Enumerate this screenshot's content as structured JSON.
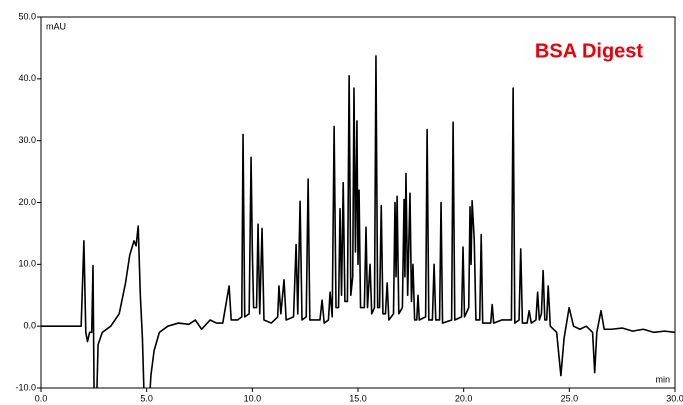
{
  "chart_data": {
    "type": "line",
    "title": "BSA Digest",
    "title_color": "#e8000b",
    "ylabel": "mAU",
    "xlabel": "min",
    "xlim": [
      0,
      30
    ],
    "xticks": [
      {
        "value": 0,
        "label": "0.0"
      },
      {
        "value": 5,
        "label": "5.0"
      },
      {
        "value": 10,
        "label": "10.0"
      },
      {
        "value": 15,
        "label": "15.0"
      },
      {
        "value": 20,
        "label": "20.0"
      },
      {
        "value": 25,
        "label": "25.0"
      },
      {
        "value": 30,
        "label": "30.0"
      }
    ],
    "ylim": [
      -10,
      50
    ],
    "yticks": [
      {
        "value": -10,
        "label": "-10.0"
      },
      {
        "value": 0,
        "label": "0.0"
      },
      {
        "value": 10,
        "label": "10.0"
      },
      {
        "value": 20,
        "label": "20.0"
      },
      {
        "value": 30,
        "label": "30.0"
      },
      {
        "value": 40,
        "label": "40.0"
      },
      {
        "value": 50,
        "label": "50.0"
      }
    ],
    "grid": false,
    "series": [
      {
        "name": null,
        "color": "#000000",
        "x": [
          0,
          1.9,
          2.03,
          2.12,
          2.2,
          2.3,
          2.4,
          2.46,
          2.52,
          2.62,
          2.7,
          2.9,
          3.3,
          3.7,
          4.0,
          4.2,
          4.4,
          4.5,
          4.6,
          4.7,
          4.8,
          4.9,
          5.1,
          5.2,
          5.35,
          5.6,
          6.0,
          6.5,
          7.0,
          7.3,
          7.6,
          8.0,
          8.3,
          8.6,
          8.9,
          9.0,
          9.3,
          9.5,
          9.56,
          9.64,
          9.85,
          9.94,
          10.0,
          10.06,
          10.2,
          10.27,
          10.35,
          10.46,
          10.55,
          10.9,
          11.2,
          11.26,
          11.35,
          11.5,
          11.6,
          11.95,
          12.07,
          12.15,
          12.26,
          12.35,
          12.55,
          12.64,
          12.72,
          13.2,
          13.3,
          13.4,
          13.6,
          13.68,
          13.78,
          13.87,
          13.96,
          14.08,
          14.15,
          14.22,
          14.3,
          14.38,
          14.5,
          14.58,
          14.66,
          14.75,
          14.81,
          14.88,
          14.95,
          15.0,
          15.05,
          15.12,
          15.3,
          15.38,
          15.45,
          15.57,
          15.65,
          15.78,
          15.85,
          15.93,
          16.02,
          16.1,
          16.18,
          16.3,
          16.38,
          16.46,
          16.68,
          16.75,
          16.8,
          16.85,
          16.93,
          17.1,
          17.18,
          17.22,
          17.27,
          17.35,
          17.46,
          17.53,
          17.6,
          17.68,
          17.78,
          17.84,
          17.9,
          18.2,
          18.27,
          18.35,
          18.52,
          18.6,
          18.68,
          18.86,
          18.93,
          19.0,
          19.43,
          19.5,
          19.58,
          19.9,
          19.97,
          20.04,
          20.24,
          20.3,
          20.35,
          20.4,
          20.5,
          20.58,
          20.76,
          20.83,
          20.9,
          21.28,
          21.35,
          21.42,
          21.8,
          22.26,
          22.34,
          22.42,
          22.62,
          22.7,
          22.78,
          23.0,
          23.1,
          23.2,
          23.42,
          23.5,
          23.58,
          23.68,
          23.76,
          23.84,
          23.93,
          24.0,
          24.1,
          24.4,
          24.6,
          24.75,
          24.99,
          25.2,
          25.5,
          25.8,
          26.1,
          26.2,
          26.3,
          26.5,
          26.65,
          27.0,
          27.5,
          28.0,
          28.5,
          29.0,
          29.5,
          30.0
        ],
        "values": [
          0,
          0,
          13.8,
          -1,
          -2.5,
          -1,
          -1,
          9.8,
          -14,
          -14,
          -3,
          -1,
          0,
          2,
          7,
          11.5,
          13.8,
          13,
          16.2,
          5,
          -2,
          -14,
          -14,
          -8,
          -4,
          -1,
          0,
          0.5,
          0.3,
          1,
          -0.5,
          1,
          0.5,
          0.5,
          6.5,
          1,
          1,
          1.5,
          31,
          1.5,
          2,
          27.3,
          12.2,
          3,
          3,
          16.5,
          2,
          15.8,
          1,
          0.5,
          1.5,
          6.5,
          2,
          7.5,
          1,
          1.5,
          13.2,
          2,
          20.2,
          1,
          1.5,
          23.8,
          1,
          1,
          4.2,
          0.5,
          1,
          5.5,
          1.5,
          32.3,
          3,
          3,
          19,
          5,
          23.2,
          4,
          4,
          40.5,
          5,
          8,
          38.5,
          12,
          33.2,
          10,
          22,
          3,
          3,
          16,
          3,
          10,
          2,
          3,
          43.7,
          3,
          3,
          19.5,
          2,
          2,
          7,
          1,
          2,
          20,
          8,
          21,
          2,
          3,
          20.5,
          8,
          24.7,
          5,
          21.5,
          4,
          10,
          1,
          1,
          5,
          1,
          1.5,
          31.8,
          1,
          1,
          10,
          1,
          1,
          20,
          0.5,
          1,
          33,
          1,
          1.5,
          12.8,
          1.5,
          3,
          19.3,
          10,
          20.3,
          14,
          1,
          1,
          14.8,
          0.5,
          0.5,
          3.5,
          0.5,
          1,
          1,
          38.5,
          0.5,
          1,
          12.5,
          0.5,
          0.5,
          2.5,
          0.5,
          1,
          5.5,
          1,
          2,
          9,
          1,
          1,
          6.5,
          0,
          -1,
          -8,
          -2,
          3,
          0,
          -0.5,
          0,
          -1,
          -7.5,
          -1,
          2.5,
          -0.5,
          -0.5,
          -0.3,
          -0.8,
          -0.5,
          -1,
          -0.8,
          -1
        ]
      }
    ]
  }
}
